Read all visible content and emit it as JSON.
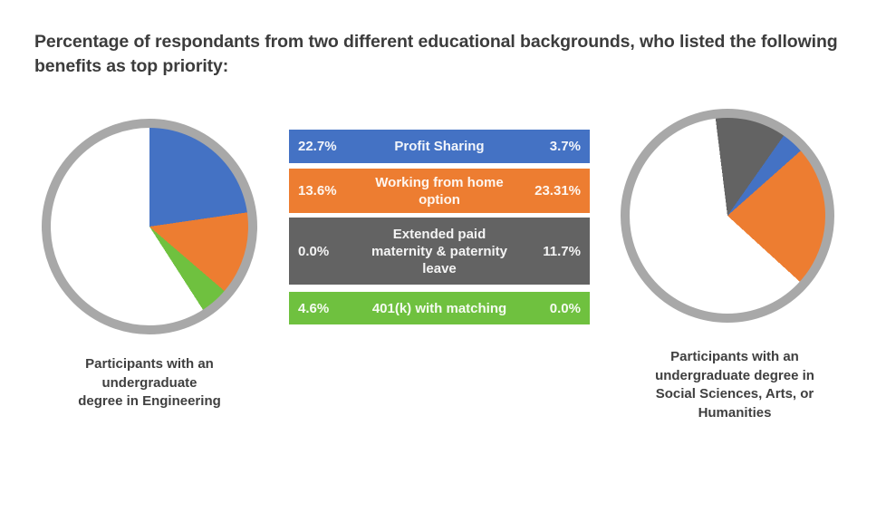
{
  "title": "Percentage of respondants from two different educational backgrounds, who listed the following benefits as top priority:",
  "colors": {
    "blue": "#4472C4",
    "orange": "#ED7D31",
    "gray": "#636363",
    "green": "#6FC13F",
    "ring_gray": "#A8A8A8",
    "title_text": "#3C3C3C",
    "legend_text": "#FFFFFF",
    "background": "#FFFFFF"
  },
  "legend": {
    "rows": [
      {
        "label": "Profit Sharing",
        "label_lines": [
          "Profit Sharing",
          "",
          ""
        ],
        "left_value": "22.7%",
        "right_value": "3.7%",
        "color": "#4472C4"
      },
      {
        "label": "Working from home option",
        "label_lines": [
          "Working from home",
          "option",
          ""
        ],
        "left_value": "13.6%",
        "right_value": "23.31%",
        "color": "#ED7D31"
      },
      {
        "label": "Extended paid maternity & paternity leave",
        "label_lines": [
          "Extended paid",
          "maternity & paternity",
          "leave"
        ],
        "left_value": "0.0%",
        "right_value": "11.7%",
        "color": "#636363"
      },
      {
        "label": "401(k) with matching",
        "label_lines": [
          "401(k) with matching",
          "",
          ""
        ],
        "left_value": "4.6%",
        "right_value": "0.0%",
        "color": "#6FC13F"
      }
    ]
  },
  "captions": {
    "engineering": {
      "text": "Participants with an undergraduate degree in Engineering",
      "lines": [
        "Participants with an",
        "undergraduate",
        "degree in Engineering"
      ]
    },
    "social": {
      "text": "Participants with an undergraduate degree in Social Sciences, Arts, or Humanities",
      "lines": [
        "Participants with an",
        "undergraduate degree in",
        "Social Sciences, Arts, or",
        "Humanities"
      ]
    }
  },
  "chart_data": [
    {
      "type": "pie",
      "title": "Participants with an undergraduate degree in Engineering",
      "labels": [
        "Profit Sharing",
        "Working from home option",
        "Extended paid maternity & paternity leave",
        "401(k) with matching",
        ""
      ],
      "values": [
        22.7,
        13.6,
        0.0,
        4.6,
        59.1
      ],
      "colors": [
        "#4472C4",
        "#ED7D31",
        "#636363",
        "#6FC13F",
        "#FFFFFF"
      ],
      "start_angle": 0,
      "ring_color": "#A8A8A8",
      "legend_position": "center-table"
    },
    {
      "type": "pie",
      "title": "Participants with an undergraduate degree in Social Sciences, Arts, or Humanities",
      "labels": [
        "Extended paid maternity & paternity leave",
        "Profit Sharing",
        "Working from home option",
        "401(k) with matching",
        ""
      ],
      "values": [
        11.7,
        3.7,
        23.31,
        0.0,
        61.29
      ],
      "colors": [
        "#636363",
        "#4472C4",
        "#ED7D31",
        "#6FC13F",
        "#FFFFFF"
      ],
      "start_angle": -7,
      "ring_color": "#A8A8A8",
      "legend_position": "center-table"
    }
  ]
}
